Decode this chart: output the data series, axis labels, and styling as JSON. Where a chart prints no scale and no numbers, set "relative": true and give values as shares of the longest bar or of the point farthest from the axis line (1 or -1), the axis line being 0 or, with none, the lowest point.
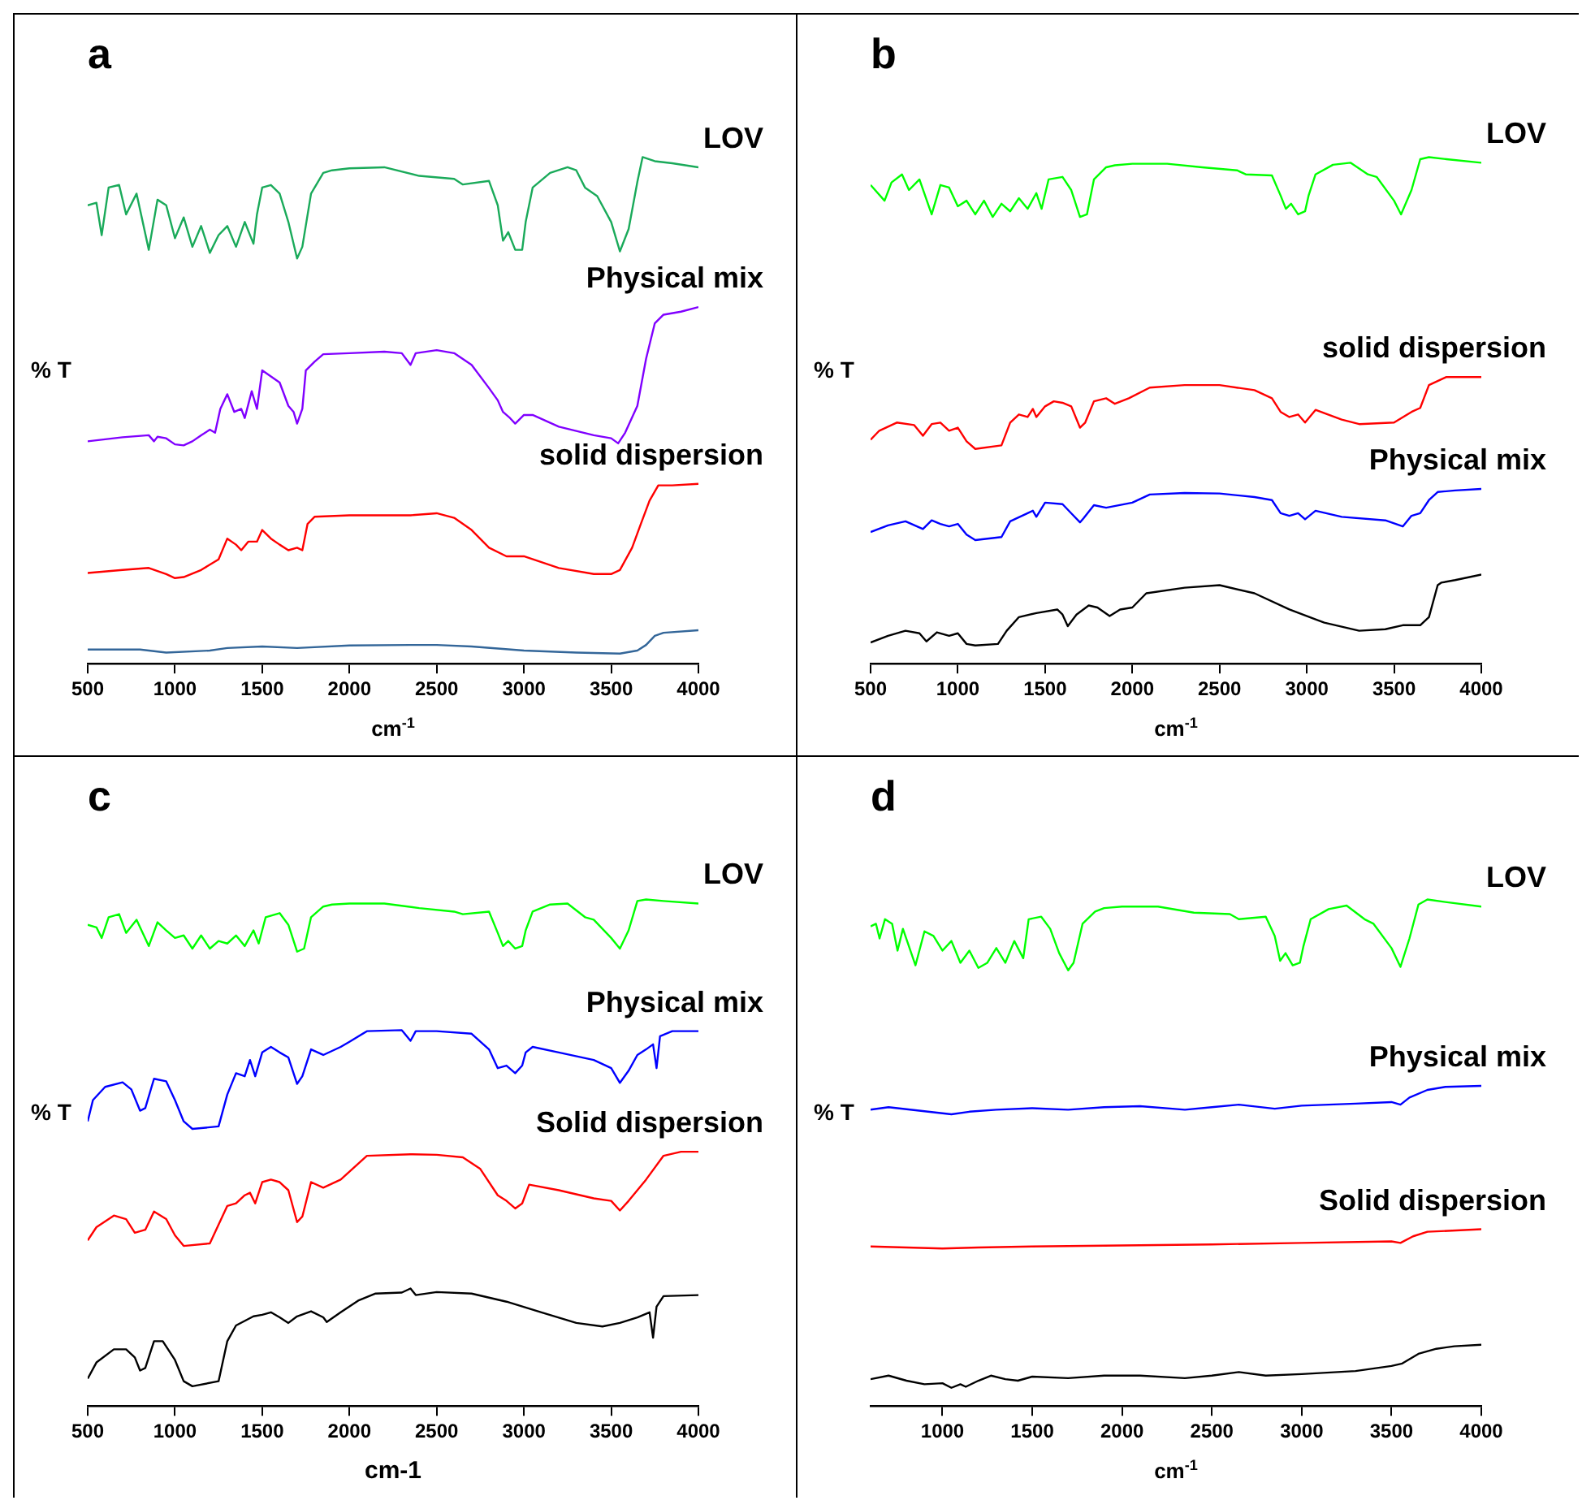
{
  "chart_data": [
    {
      "type": "line",
      "title": "a",
      "xlabel": "cm$^{-1}$",
      "ylabel": "% T",
      "relative": true,
      "xlim": [
        500,
        4000
      ],
      "xticks": [
        500,
        1000,
        1500,
        2000,
        2500,
        3000,
        3500,
        4000
      ],
      "series": [
        {
          "name": "LOV",
          "color": "#1aaa5a",
          "x": [
            500,
            550,
            580,
            620,
            680,
            720,
            780,
            850,
            900,
            950,
            1000,
            1050,
            1100,
            1150,
            1200,
            1250,
            1300,
            1350,
            1400,
            1450,
            1470,
            1500,
            1550,
            1600,
            1650,
            1700,
            1730,
            1780,
            1850,
            1900,
            2000,
            2200,
            2400,
            2600,
            2650,
            2800,
            2850,
            2880,
            2910,
            2950,
            2990,
            3010,
            3050,
            3150,
            3250,
            3300,
            3350,
            3420,
            3500,
            3550,
            3600,
            3650,
            3680,
            3750,
            3850,
            4000
          ],
          "values": [
            0.905,
            0.91,
            0.846,
            0.94,
            0.945,
            0.887,
            0.928,
            0.817,
            0.916,
            0.905,
            0.84,
            0.881,
            0.823,
            0.864,
            0.811,
            0.846,
            0.864,
            0.823,
            0.872,
            0.829,
            0.887,
            0.94,
            0.945,
            0.928,
            0.872,
            0.8,
            0.823,
            0.928,
            0.969,
            0.974,
            0.978,
            0.98,
            0.963,
            0.957,
            0.946,
            0.953,
            0.905,
            0.835,
            0.852,
            0.817,
            0.817,
            0.872,
            0.94,
            0.969,
            0.98,
            0.974,
            0.94,
            0.923,
            0.872,
            0.814,
            0.858,
            0.951,
            1,
            0.992,
            0.988,
            0.98
          ]
        },
        {
          "name": "Physical mix",
          "color": "#8000ff",
          "x": [
            500,
            700,
            850,
            880,
            900,
            950,
            1000,
            1050,
            1100,
            1150,
            1200,
            1230,
            1260,
            1300,
            1340,
            1380,
            1400,
            1440,
            1470,
            1500,
            1550,
            1600,
            1650,
            1680,
            1700,
            1730,
            1750,
            1800,
            1850,
            2000,
            2200,
            2300,
            2350,
            2380,
            2500,
            2600,
            2700,
            2800,
            2850,
            2880,
            2920,
            2950,
            3000,
            3050,
            3200,
            3400,
            3500,
            3540,
            3580,
            3650,
            3700,
            3750,
            3800,
            3900,
            4000
          ],
          "values": [
            0.439,
            0.447,
            0.451,
            0.439,
            0.448,
            0.445,
            0.433,
            0.431,
            0.439,
            0.451,
            0.462,
            0.456,
            0.503,
            0.532,
            0.497,
            0.503,
            0.485,
            0.538,
            0.503,
            0.579,
            0.567,
            0.555,
            0.509,
            0.497,
            0.474,
            0.503,
            0.579,
            0.596,
            0.611,
            0.613,
            0.616,
            0.613,
            0.59,
            0.613,
            0.619,
            0.613,
            0.59,
            0.544,
            0.52,
            0.497,
            0.485,
            0.474,
            0.491,
            0.491,
            0.468,
            0.451,
            0.445,
            0.435,
            0.456,
            0.509,
            0.602,
            0.672,
            0.689,
            0.695,
            0.704
          ]
        },
        {
          "name": "solid dispersion",
          "color": "#ff0000",
          "x": [
            500,
            700,
            850,
            950,
            1000,
            1050,
            1150,
            1250,
            1300,
            1350,
            1380,
            1420,
            1470,
            1500,
            1550,
            1600,
            1650,
            1700,
            1730,
            1760,
            1800,
            2000,
            2350,
            2500,
            2600,
            2700,
            2800,
            2900,
            3000,
            3200,
            3400,
            3500,
            3550,
            3620,
            3670,
            3720,
            3770,
            3850,
            4000
          ],
          "values": [
            0.179,
            0.185,
            0.189,
            0.177,
            0.169,
            0.171,
            0.185,
            0.206,
            0.247,
            0.235,
            0.224,
            0.241,
            0.241,
            0.264,
            0.247,
            0.235,
            0.224,
            0.229,
            0.224,
            0.276,
            0.29,
            0.293,
            0.293,
            0.297,
            0.288,
            0.264,
            0.229,
            0.212,
            0.212,
            0.189,
            0.177,
            0.177,
            0.185,
            0.229,
            0.276,
            0.322,
            0.352,
            0.352,
            0.355
          ]
        },
        {
          "color": "#336699",
          "x": [
            500,
            800,
            950,
            1200,
            1300,
            1500,
            1700,
            2000,
            2350,
            2500,
            2700,
            3000,
            3300,
            3550,
            3650,
            3700,
            3750,
            3800,
            4000
          ],
          "values": [
            0.028,
            0.028,
            0.022,
            0.026,
            0.031,
            0.034,
            0.031,
            0.036,
            0.037,
            0.037,
            0.034,
            0.026,
            0.022,
            0.02,
            0.026,
            0.037,
            0.055,
            0.061,
            0.066
          ]
        }
      ]
    },
    {
      "type": "line",
      "title": "b",
      "xlabel": "cm$^{-1}$",
      "ylabel": "% T",
      "relative": true,
      "xlim": [
        500,
        4000
      ],
      "xticks": [
        500,
        1000,
        1500,
        2000,
        2500,
        3000,
        3500,
        4000
      ],
      "series": [
        {
          "name": "LOV",
          "color": "#00ff00",
          "x": [
            500,
            580,
            620,
            680,
            720,
            780,
            850,
            900,
            950,
            1000,
            1050,
            1100,
            1150,
            1200,
            1250,
            1300,
            1350,
            1400,
            1450,
            1480,
            1520,
            1600,
            1650,
            1700,
            1740,
            1780,
            1850,
            1900,
            2000,
            2200,
            2400,
            2600,
            2650,
            2800,
            2850,
            2880,
            2910,
            2950,
            2990,
            3010,
            3050,
            3150,
            3250,
            3350,
            3400,
            3500,
            3540,
            3600,
            3650,
            3700,
            3800,
            4000
          ],
          "values": [
            0.945,
            0.914,
            0.95,
            0.966,
            0.935,
            0.956,
            0.887,
            0.945,
            0.94,
            0.903,
            0.914,
            0.887,
            0.914,
            0.882,
            0.908,
            0.893,
            0.919,
            0.898,
            0.929,
            0.898,
            0.956,
            0.961,
            0.935,
            0.882,
            0.887,
            0.956,
            0.98,
            0.984,
            0.987,
            0.987,
            0.98,
            0.974,
            0.966,
            0.964,
            0.924,
            0.898,
            0.908,
            0.887,
            0.893,
            0.924,
            0.966,
            0.985,
            0.989,
            0.966,
            0.961,
            0.914,
            0.887,
            0.935,
            0.996,
            1,
            0.996,
            0.989
          ]
        },
        {
          "name": "solid dispersion",
          "color": "#ff0000",
          "x": [
            500,
            550,
            650,
            750,
            800,
            850,
            900,
            950,
            1000,
            1050,
            1100,
            1250,
            1300,
            1350,
            1400,
            1430,
            1450,
            1500,
            1550,
            1600,
            1650,
            1700,
            1730,
            1780,
            1850,
            1900,
            1980,
            2100,
            2300,
            2500,
            2700,
            2800,
            2850,
            2900,
            2950,
            2990,
            3050,
            3200,
            3300,
            3500,
            3600,
            3650,
            3700,
            3800,
            4000
          ],
          "values": [
            0.442,
            0.46,
            0.476,
            0.471,
            0.45,
            0.473,
            0.476,
            0.46,
            0.466,
            0.439,
            0.424,
            0.431,
            0.476,
            0.492,
            0.487,
            0.503,
            0.487,
            0.508,
            0.518,
            0.515,
            0.508,
            0.466,
            0.476,
            0.518,
            0.524,
            0.513,
            0.524,
            0.545,
            0.55,
            0.55,
            0.54,
            0.524,
            0.497,
            0.487,
            0.492,
            0.476,
            0.501,
            0.482,
            0.473,
            0.476,
            0.497,
            0.505,
            0.55,
            0.566,
            0.566
          ]
        },
        {
          "name": "Physical mix",
          "color": "#0000ff",
          "x": [
            500,
            600,
            700,
            800,
            850,
            900,
            950,
            1000,
            1050,
            1100,
            1250,
            1300,
            1400,
            1430,
            1450,
            1500,
            1600,
            1650,
            1700,
            1720,
            1780,
            1850,
            2000,
            2100,
            2300,
            2500,
            2700,
            2800,
            2850,
            2900,
            2950,
            2990,
            3050,
            3200,
            3450,
            3550,
            3600,
            3650,
            3700,
            3750,
            3850,
            4000
          ],
          "values": [
            0.26,
            0.273,
            0.281,
            0.266,
            0.283,
            0.276,
            0.271,
            0.276,
            0.255,
            0.244,
            0.25,
            0.281,
            0.297,
            0.302,
            0.29,
            0.318,
            0.315,
            0.297,
            0.279,
            0.287,
            0.313,
            0.308,
            0.318,
            0.334,
            0.337,
            0.336,
            0.329,
            0.323,
            0.297,
            0.292,
            0.297,
            0.285,
            0.302,
            0.29,
            0.283,
            0.271,
            0.292,
            0.297,
            0.323,
            0.339,
            0.342,
            0.345
          ]
        },
        {
          "color": "#000000",
          "x": [
            500,
            600,
            700,
            780,
            820,
            880,
            950,
            1000,
            1050,
            1100,
            1230,
            1280,
            1350,
            1450,
            1570,
            1600,
            1630,
            1680,
            1750,
            1800,
            1870,
            1930,
            2000,
            2080,
            2300,
            2500,
            2700,
            2900,
            3100,
            3300,
            3450,
            3550,
            3650,
            3700,
            3750,
            3770,
            3850,
            4000
          ],
          "values": [
            0.042,
            0.055,
            0.065,
            0.06,
            0.044,
            0.062,
            0.055,
            0.06,
            0.039,
            0.036,
            0.039,
            0.065,
            0.092,
            0.1,
            0.107,
            0.097,
            0.074,
            0.097,
            0.115,
            0.111,
            0.094,
            0.107,
            0.111,
            0.139,
            0.15,
            0.155,
            0.139,
            0.107,
            0.081,
            0.065,
            0.068,
            0.076,
            0.076,
            0.092,
            0.155,
            0.16,
            0.165,
            0.176
          ]
        }
      ]
    },
    {
      "type": "line",
      "title": "c",
      "xlabel": "cm-1",
      "ylabel": "% T",
      "relative": true,
      "xlim": [
        500,
        4000
      ],
      "xticks": [
        500,
        1000,
        1500,
        2000,
        2500,
        3000,
        3500,
        4000
      ],
      "series": [
        {
          "name": "LOV",
          "color": "#00ff00",
          "x": [
            500,
            550,
            580,
            620,
            680,
            720,
            780,
            850,
            900,
            950,
            1000,
            1050,
            1100,
            1150,
            1200,
            1250,
            1300,
            1350,
            1400,
            1450,
            1480,
            1520,
            1600,
            1650,
            1700,
            1740,
            1780,
            1850,
            1900,
            2000,
            2200,
            2400,
            2600,
            2650,
            2800,
            2850,
            2880,
            2910,
            2950,
            2990,
            3010,
            3050,
            3150,
            3250,
            3350,
            3400,
            3500,
            3550,
            3600,
            3650,
            3700,
            3800,
            4000
          ],
          "values": [
            0.95,
            0.945,
            0.924,
            0.965,
            0.971,
            0.934,
            0.96,
            0.908,
            0.955,
            0.939,
            0.924,
            0.929,
            0.903,
            0.929,
            0.903,
            0.918,
            0.913,
            0.929,
            0.908,
            0.939,
            0.913,
            0.965,
            0.973,
            0.95,
            0.897,
            0.903,
            0.965,
            0.986,
            0.99,
            0.992,
            0.992,
            0.983,
            0.976,
            0.971,
            0.976,
            0.934,
            0.908,
            0.918,
            0.903,
            0.908,
            0.939,
            0.976,
            0.99,
            0.992,
            0.965,
            0.96,
            0.924,
            0.903,
            0.939,
            0.997,
            1,
            0.997,
            0.992
          ]
        },
        {
          "name": "Physical mix",
          "color": "#0000ff",
          "x": [
            500,
            530,
            600,
            700,
            750,
            800,
            830,
            880,
            950,
            1000,
            1050,
            1100,
            1250,
            1300,
            1350,
            1400,
            1430,
            1460,
            1500,
            1550,
            1600,
            1650,
            1700,
            1730,
            1780,
            1850,
            1950,
            2000,
            2100,
            2300,
            2350,
            2380,
            2500,
            2700,
            2800,
            2850,
            2900,
            2950,
            2990,
            3010,
            3050,
            3200,
            3400,
            3500,
            3550,
            3600,
            3650,
            3700,
            3740,
            3760,
            3780,
            3850,
            4000
          ],
          "values": [
            0.562,
            0.604,
            0.63,
            0.639,
            0.625,
            0.583,
            0.588,
            0.646,
            0.641,
            0.604,
            0.562,
            0.547,
            0.552,
            0.615,
            0.657,
            0.651,
            0.683,
            0.651,
            0.698,
            0.709,
            0.698,
            0.688,
            0.636,
            0.651,
            0.704,
            0.693,
            0.709,
            0.719,
            0.74,
            0.742,
            0.721,
            0.74,
            0.74,
            0.735,
            0.704,
            0.667,
            0.672,
            0.657,
            0.672,
            0.698,
            0.709,
            0.698,
            0.683,
            0.667,
            0.638,
            0.662,
            0.693,
            0.704,
            0.714,
            0.667,
            0.73,
            0.74,
            0.74
          ]
        },
        {
          "name": "Solid dispersion",
          "color": "#ff0000",
          "x": [
            500,
            550,
            650,
            720,
            770,
            830,
            880,
            950,
            1000,
            1050,
            1200,
            1300,
            1350,
            1400,
            1430,
            1460,
            1500,
            1550,
            1600,
            1650,
            1700,
            1730,
            1780,
            1850,
            1950,
            2100,
            2350,
            2500,
            2650,
            2750,
            2850,
            2900,
            2950,
            2990,
            3030,
            3200,
            3400,
            3500,
            3550,
            3600,
            3700,
            3800,
            3900,
            4000
          ],
          "values": [
            0.327,
            0.353,
            0.376,
            0.369,
            0.342,
            0.348,
            0.384,
            0.369,
            0.337,
            0.316,
            0.321,
            0.395,
            0.4,
            0.416,
            0.421,
            0.4,
            0.442,
            0.447,
            0.442,
            0.426,
            0.363,
            0.374,
            0.442,
            0.431,
            0.447,
            0.494,
            0.497,
            0.496,
            0.491,
            0.468,
            0.416,
            0.405,
            0.39,
            0.4,
            0.437,
            0.426,
            0.41,
            0.405,
            0.386,
            0.405,
            0.447,
            0.494,
            0.502,
            0.502
          ]
        },
        {
          "color": "#000000",
          "x": [
            500,
            550,
            650,
            720,
            770,
            800,
            830,
            880,
            930,
            1000,
            1050,
            1100,
            1250,
            1300,
            1350,
            1450,
            1500,
            1550,
            1600,
            1650,
            1700,
            1780,
            1850,
            1870,
            1950,
            2050,
            2150,
            2300,
            2350,
            2380,
            2500,
            2700,
            2900,
            3100,
            3300,
            3450,
            3550,
            3650,
            3720,
            3740,
            3760,
            3800,
            4000
          ],
          "values": [
            0.054,
            0.086,
            0.112,
            0.112,
            0.096,
            0.07,
            0.075,
            0.128,
            0.128,
            0.091,
            0.049,
            0.039,
            0.049,
            0.128,
            0.159,
            0.177,
            0.18,
            0.185,
            0.175,
            0.164,
            0.177,
            0.187,
            0.175,
            0.166,
            0.185,
            0.208,
            0.222,
            0.224,
            0.232,
            0.219,
            0.225,
            0.222,
            0.206,
            0.185,
            0.164,
            0.157,
            0.164,
            0.175,
            0.185,
            0.135,
            0.196,
            0.217,
            0.219
          ]
        }
      ]
    },
    {
      "type": "line",
      "title": "d",
      "xlabel": "cm$^{-1}$",
      "ylabel": "% T",
      "relative": true,
      "xlim": [
        600,
        4000
      ],
      "xticks": [
        1000,
        1500,
        2000,
        2500,
        3000,
        3500,
        4000
      ],
      "series": [
        {
          "name": "LOV",
          "color": "#00ff00",
          "x": [
            600,
            630,
            650,
            680,
            720,
            750,
            780,
            850,
            900,
            950,
            1000,
            1050,
            1100,
            1150,
            1200,
            1250,
            1300,
            1350,
            1400,
            1450,
            1480,
            1550,
            1600,
            1650,
            1700,
            1730,
            1780,
            1850,
            1900,
            2000,
            2200,
            2400,
            2600,
            2650,
            2800,
            2850,
            2880,
            2910,
            2950,
            2990,
            3010,
            3050,
            3150,
            3250,
            3350,
            3400,
            3500,
            3550,
            3600,
            3650,
            3700,
            3800,
            4000
          ],
          "values": [
            0.947,
            0.952,
            0.923,
            0.961,
            0.952,
            0.899,
            0.942,
            0.87,
            0.937,
            0.928,
            0.899,
            0.918,
            0.875,
            0.899,
            0.865,
            0.875,
            0.904,
            0.875,
            0.918,
            0.884,
            0.961,
            0.966,
            0.942,
            0.894,
            0.86,
            0.875,
            0.952,
            0.976,
            0.983,
            0.986,
            0.986,
            0.974,
            0.971,
            0.961,
            0.966,
            0.928,
            0.879,
            0.894,
            0.87,
            0.875,
            0.908,
            0.961,
            0.981,
            0.988,
            0.961,
            0.952,
            0.904,
            0.867,
            0.923,
            0.99,
            1,
            0.995,
            0.986
          ]
        },
        {
          "name": "Physical mix",
          "color": "#0000ff",
          "x": [
            600,
            700,
            900,
            1050,
            1150,
            1300,
            1500,
            1700,
            1900,
            2100,
            2350,
            2500,
            2650,
            2850,
            3000,
            3300,
            3500,
            3550,
            3600,
            3700,
            3800,
            4000
          ],
          "values": [
            0.585,
            0.59,
            0.582,
            0.576,
            0.581,
            0.585,
            0.588,
            0.585,
            0.59,
            0.592,
            0.585,
            0.59,
            0.595,
            0.587,
            0.593,
            0.597,
            0.6,
            0.595,
            0.609,
            0.624,
            0.63,
            0.632
          ]
        },
        {
          "name": "Solid dispersion",
          "color": "#ff0000",
          "x": [
            600,
            1000,
            1200,
            1500,
            2000,
            2500,
            3000,
            3500,
            3550,
            3620,
            3700,
            4000
          ],
          "values": [
            0.315,
            0.311,
            0.313,
            0.315,
            0.317,
            0.319,
            0.322,
            0.325,
            0.322,
            0.335,
            0.344,
            0.349
          ]
        },
        {
          "color": "#000000",
          "x": [
            600,
            700,
            800,
            900,
            1000,
            1050,
            1100,
            1130,
            1200,
            1270,
            1350,
            1420,
            1500,
            1700,
            1900,
            2100,
            2350,
            2500,
            2650,
            2800,
            3000,
            3300,
            3500,
            3560,
            3650,
            3750,
            3850,
            4000
          ],
          "values": [
            0.053,
            0.06,
            0.05,
            0.043,
            0.045,
            0.036,
            0.043,
            0.038,
            0.05,
            0.06,
            0.053,
            0.05,
            0.058,
            0.055,
            0.06,
            0.06,
            0.055,
            0.06,
            0.067,
            0.06,
            0.063,
            0.069,
            0.079,
            0.084,
            0.103,
            0.113,
            0.118,
            0.121
          ]
        }
      ]
    }
  ]
}
